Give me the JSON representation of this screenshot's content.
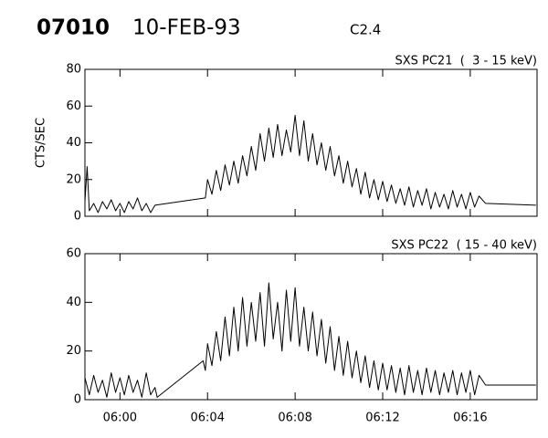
{
  "header": {
    "id": "07010",
    "date": "10-FEB-93",
    "class": "C2.4"
  },
  "chart_data": [
    {
      "type": "line",
      "title": "SXS PC21  (  3 - 15 keV)",
      "ylabel": "CTS/SEC",
      "color": "#000000",
      "xlim": [
        358.4,
        379.05
      ],
      "ylim": [
        0,
        80
      ],
      "yticks": [
        0,
        20,
        40,
        60,
        80
      ],
      "xticks": [
        360,
        364,
        368,
        372,
        376
      ],
      "x": [
        358.4,
        358.5,
        358.6,
        358.8,
        359.0,
        359.2,
        359.4,
        359.6,
        359.8,
        360.0,
        360.2,
        360.4,
        360.6,
        360.8,
        361.0,
        361.2,
        361.4,
        361.6,
        363.9,
        364.0,
        364.2,
        364.4,
        364.6,
        364.8,
        365.0,
        365.2,
        365.4,
        365.6,
        365.8,
        366.0,
        366.2,
        366.4,
        366.6,
        366.8,
        367.0,
        367.2,
        367.4,
        367.6,
        367.8,
        368.0,
        368.2,
        368.4,
        368.6,
        368.8,
        369.0,
        369.2,
        369.4,
        369.6,
        369.8,
        370.0,
        370.2,
        370.4,
        370.6,
        370.8,
        371.0,
        371.2,
        371.4,
        371.6,
        371.8,
        372.0,
        372.2,
        372.4,
        372.6,
        372.8,
        373.0,
        373.2,
        373.4,
        373.6,
        373.8,
        374.0,
        374.2,
        374.4,
        374.6,
        374.8,
        375.0,
        375.2,
        375.4,
        375.6,
        375.8,
        376.0,
        376.2,
        376.4,
        376.7,
        379.0
      ],
      "values": [
        8,
        27,
        3,
        7,
        2,
        8,
        4,
        9,
        3,
        7,
        2,
        8,
        4,
        10,
        3,
        7,
        2,
        6,
        10,
        20,
        12,
        25,
        14,
        28,
        17,
        30,
        18,
        33,
        22,
        38,
        25,
        45,
        30,
        48,
        32,
        50,
        33,
        47,
        35,
        55,
        33,
        52,
        30,
        45,
        28,
        40,
        25,
        38,
        22,
        33,
        18,
        30,
        16,
        26,
        12,
        24,
        10,
        20,
        9,
        19,
        8,
        17,
        7,
        15,
        6,
        16,
        5,
        14,
        6,
        15,
        4,
        13,
        5,
        12,
        4,
        14,
        5,
        12,
        4,
        13,
        5,
        11,
        7,
        6
      ]
    },
    {
      "type": "line",
      "title": "SXS PC22  ( 15 - 40 keV)",
      "color": "#000000",
      "xlim": [
        358.4,
        379.05
      ],
      "ylim": [
        0,
        60
      ],
      "yticks": [
        0,
        20,
        40,
        60
      ],
      "xticks": [
        {
          "value": 360,
          "label": "06:00"
        },
        {
          "value": 364,
          "label": "06:04"
        },
        {
          "value": 368,
          "label": "06:08"
        },
        {
          "value": 372,
          "label": "06:12"
        },
        {
          "value": 376,
          "label": "06:16"
        }
      ],
      "x": [
        358.4,
        358.6,
        358.8,
        359.0,
        359.2,
        359.4,
        359.6,
        359.8,
        360.0,
        360.2,
        360.4,
        360.6,
        360.8,
        361.0,
        361.2,
        361.4,
        361.6,
        361.7,
        363.8,
        363.9,
        364.0,
        364.2,
        364.4,
        364.6,
        364.8,
        365.0,
        365.2,
        365.4,
        365.6,
        365.8,
        366.0,
        366.2,
        366.4,
        366.6,
        366.8,
        367.0,
        367.2,
        367.4,
        367.6,
        367.8,
        368.0,
        368.2,
        368.4,
        368.6,
        368.8,
        369.0,
        369.2,
        369.4,
        369.6,
        369.8,
        370.0,
        370.2,
        370.4,
        370.6,
        370.8,
        371.0,
        371.2,
        371.4,
        371.6,
        371.8,
        372.0,
        372.2,
        372.4,
        372.6,
        372.8,
        373.0,
        373.2,
        373.4,
        373.6,
        373.8,
        374.0,
        374.2,
        374.4,
        374.6,
        374.8,
        375.0,
        375.2,
        375.4,
        375.6,
        375.8,
        376.0,
        376.2,
        376.4,
        376.7,
        379.0
      ],
      "values": [
        9,
        2,
        10,
        3,
        8,
        1,
        11,
        3,
        9,
        2,
        10,
        3,
        8,
        1,
        11,
        2,
        5,
        1,
        16,
        12,
        23,
        14,
        28,
        16,
        34,
        18,
        38,
        20,
        42,
        22,
        40,
        24,
        44,
        22,
        48,
        25,
        40,
        20,
        45,
        24,
        46,
        22,
        38,
        20,
        36,
        18,
        33,
        15,
        30,
        12,
        26,
        10,
        24,
        9,
        20,
        7,
        18,
        5,
        16,
        4,
        15,
        4,
        14,
        3,
        13,
        2,
        14,
        3,
        12,
        2,
        13,
        3,
        12,
        2,
        11,
        3,
        12,
        2,
        11,
        3,
        12,
        2,
        10,
        6,
        6
      ]
    }
  ]
}
